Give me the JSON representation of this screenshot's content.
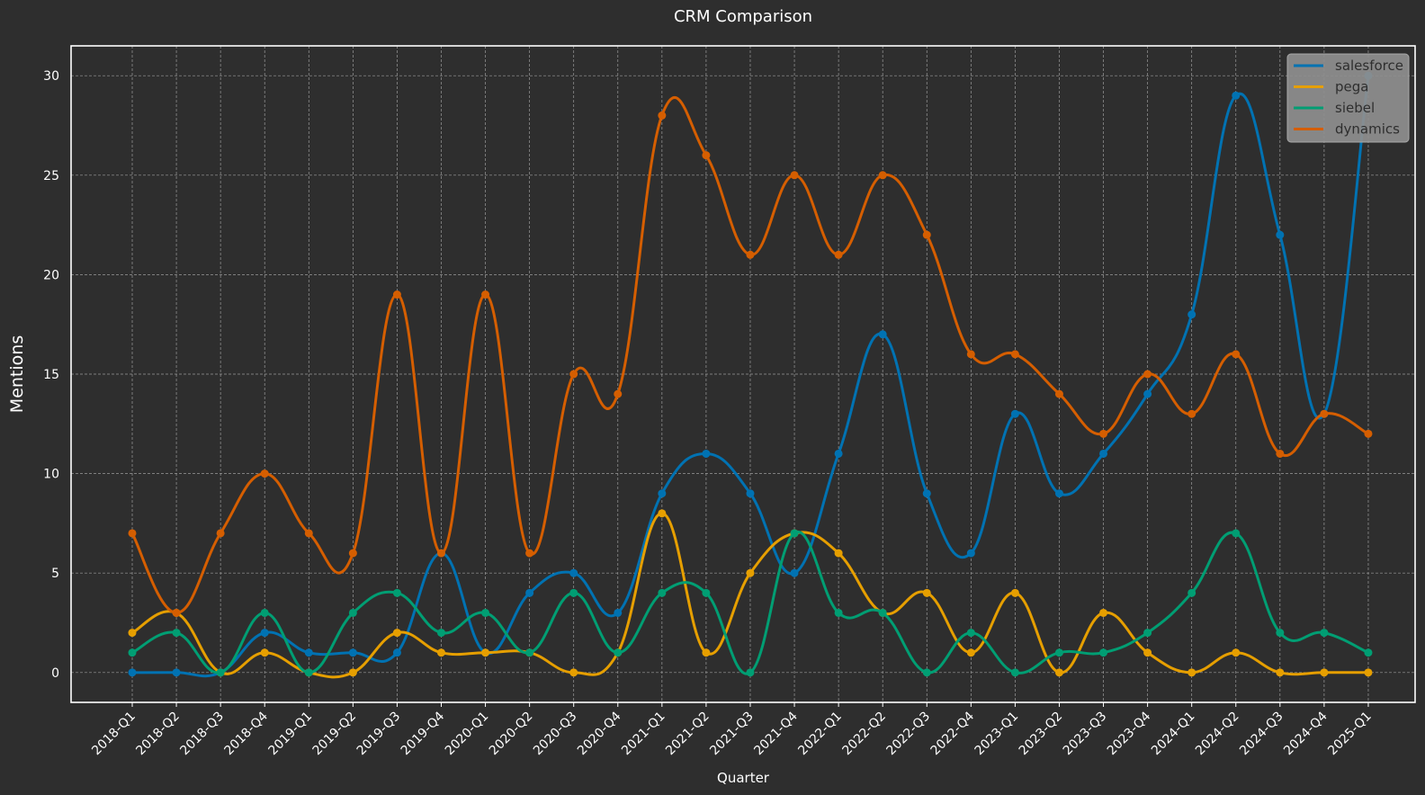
{
  "chart_data": {
    "type": "line",
    "title": "CRM Comparison",
    "xlabel": "Quarter",
    "ylabel": "Mentions",
    "ylim": [
      -1.5,
      31.5
    ],
    "yticks": [
      0,
      5,
      10,
      15,
      20,
      25,
      30
    ],
    "grid": true,
    "legend_position": "top-right",
    "categories": [
      "2018-Q1",
      "2018-Q2",
      "2018-Q3",
      "2018-Q4",
      "2019-Q1",
      "2019-Q2",
      "2019-Q3",
      "2019-Q4",
      "2020-Q1",
      "2020-Q2",
      "2020-Q3",
      "2020-Q4",
      "2021-Q1",
      "2021-Q2",
      "2021-Q3",
      "2021-Q4",
      "2022-Q1",
      "2022-Q2",
      "2022-Q3",
      "2022-Q4",
      "2023-Q1",
      "2023-Q2",
      "2023-Q3",
      "2023-Q4",
      "2024-Q1",
      "2024-Q2",
      "2024-Q3",
      "2024-Q4",
      "2025-Q1"
    ],
    "series": [
      {
        "name": "salesforce",
        "color": "#0072b2",
        "values": [
          0,
          0,
          0,
          2,
          1,
          1,
          1,
          6,
          1,
          4,
          5,
          3,
          9,
          11,
          9,
          5,
          11,
          17,
          9,
          6,
          13,
          9,
          11,
          14,
          18,
          29,
          22,
          13,
          30
        ]
      },
      {
        "name": "pega",
        "color": "#e69f00",
        "values": [
          2,
          3,
          0,
          1,
          0,
          0,
          2,
          1,
          1,
          1,
          0,
          1,
          8,
          1,
          5,
          7,
          6,
          3,
          4,
          1,
          4,
          0,
          3,
          1,
          0,
          1,
          0,
          0,
          0
        ]
      },
      {
        "name": "siebel",
        "color": "#009e73",
        "values": [
          1,
          2,
          0,
          3,
          0,
          3,
          4,
          2,
          3,
          1,
          4,
          1,
          4,
          4,
          0,
          7,
          3,
          3,
          0,
          2,
          0,
          1,
          1,
          2,
          4,
          7,
          2,
          2,
          1
        ]
      },
      {
        "name": "dynamics",
        "color": "#d55e00",
        "values": [
          7,
          3,
          7,
          10,
          7,
          6,
          19,
          6,
          19,
          6,
          15,
          14,
          28,
          26,
          21,
          25,
          21,
          25,
          22,
          16,
          16,
          14,
          12,
          15,
          13,
          16,
          11,
          13,
          12
        ]
      }
    ]
  }
}
